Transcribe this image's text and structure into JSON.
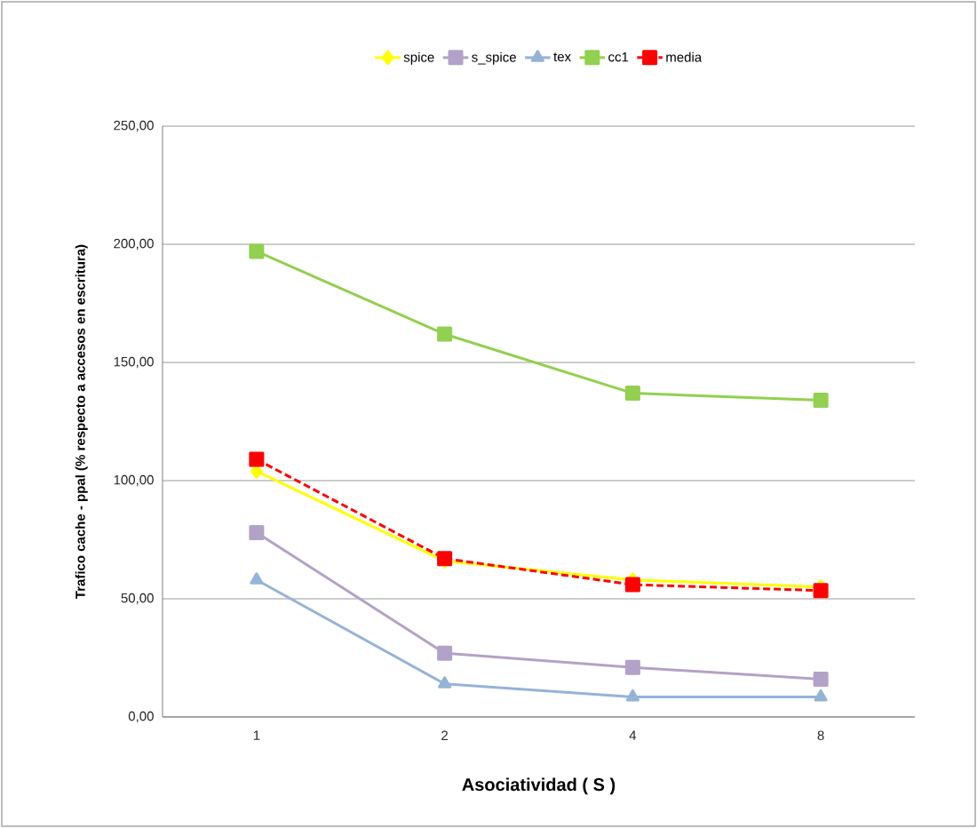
{
  "chart_data": {
    "type": "line",
    "xlabel": "Asociatividad ( S )",
    "ylabel": "Trafico cache - ppal (% respecto a accesos  en escritura)",
    "categories": [
      "1",
      "2",
      "4",
      "8"
    ],
    "ylim": [
      0,
      250
    ],
    "yticks": [
      {
        "value": 0,
        "label": "0,00"
      },
      {
        "value": 50,
        "label": "50,00"
      },
      {
        "value": 100,
        "label": "100,00"
      },
      {
        "value": 150,
        "label": "150,00"
      },
      {
        "value": 200,
        "label": "200,00"
      },
      {
        "value": 250,
        "label": "250,00"
      }
    ],
    "grid": "y",
    "legend": "top",
    "series": [
      {
        "name": "spice",
        "color": "#ffff00",
        "marker": "diamond",
        "line_style": "solid",
        "values": [
          104,
          66,
          58,
          55
        ]
      },
      {
        "name": "s_spice",
        "color": "#b3a2c7",
        "marker": "square",
        "line_style": "solid",
        "values": [
          78,
          27,
          21,
          16
        ]
      },
      {
        "name": "tex",
        "color": "#95b3d7",
        "marker": "triangle",
        "line_style": "solid",
        "values": [
          58,
          14,
          8.5,
          8.5
        ]
      },
      {
        "name": "cc1",
        "color": "#92d050",
        "marker": "square",
        "line_style": "solid",
        "values": [
          197,
          162,
          137,
          134
        ]
      },
      {
        "name": "media",
        "color": "#ff0000",
        "marker": "square",
        "line_style": "dashed",
        "values": [
          109,
          67,
          56,
          53.5
        ]
      }
    ]
  }
}
